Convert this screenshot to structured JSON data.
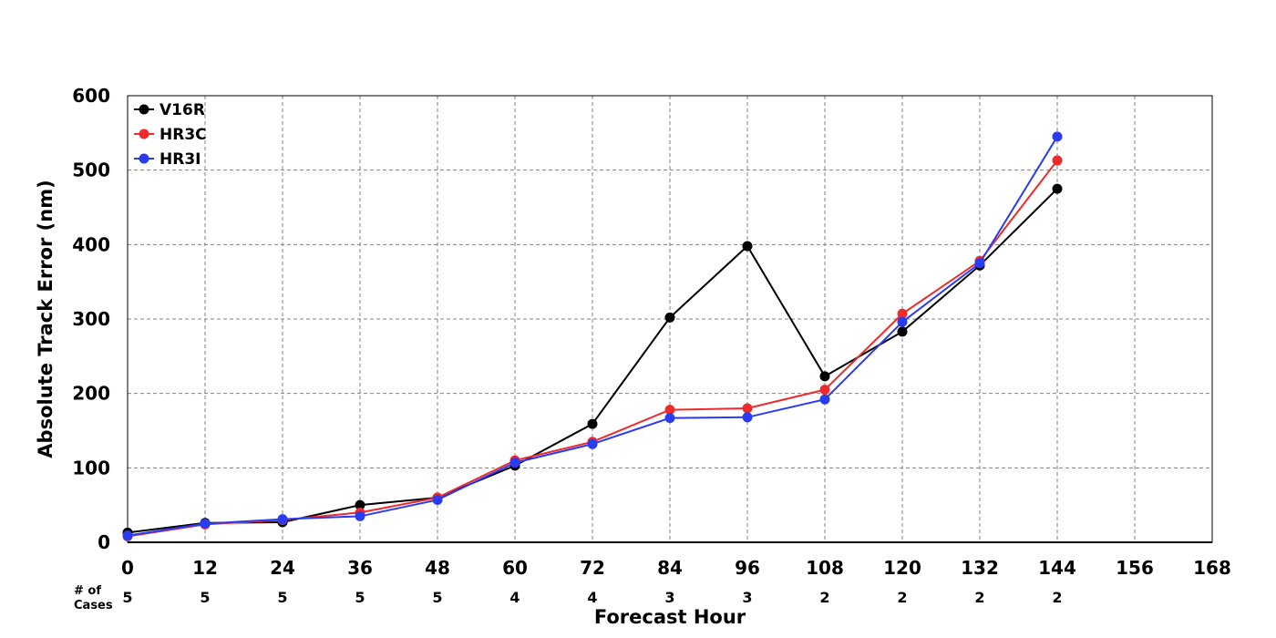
{
  "chart_data": {
    "type": "line",
    "xlabel": "Forecast Hour",
    "ylabel": "Absolute Track Error (nm)",
    "xlim": [
      0,
      168
    ],
    "ylim": [
      0,
      600
    ],
    "x_ticks": [
      0,
      12,
      24,
      36,
      48,
      60,
      72,
      84,
      96,
      108,
      120,
      132,
      144,
      156,
      168
    ],
    "y_ticks": [
      0,
      100,
      200,
      300,
      400,
      500,
      600
    ],
    "grid": true,
    "legend_position": "top-left",
    "cases_label": [
      "# of",
      "Cases"
    ],
    "cases": [
      {
        "x": 0,
        "n": "5"
      },
      {
        "x": 12,
        "n": "5"
      },
      {
        "x": 24,
        "n": "5"
      },
      {
        "x": 36,
        "n": "5"
      },
      {
        "x": 48,
        "n": "5"
      },
      {
        "x": 60,
        "n": "4"
      },
      {
        "x": 72,
        "n": "4"
      },
      {
        "x": 84,
        "n": "3"
      },
      {
        "x": 96,
        "n": "3"
      },
      {
        "x": 108,
        "n": "2"
      },
      {
        "x": 120,
        "n": "2"
      },
      {
        "x": 132,
        "n": "2"
      },
      {
        "x": 144,
        "n": "2"
      }
    ],
    "series": [
      {
        "name": "V16R",
        "color": "#000000",
        "x": [
          0,
          12,
          24,
          36,
          48,
          60,
          72,
          84,
          96,
          108,
          120,
          132,
          144
        ],
        "values": [
          13,
          26,
          27,
          50,
          60,
          103,
          159,
          302,
          398,
          223,
          283,
          372,
          475
        ]
      },
      {
        "name": "HR3C",
        "color": "#ee2a2a",
        "x": [
          0,
          12,
          24,
          36,
          48,
          60,
          72,
          84,
          96,
          108,
          120,
          132,
          144
        ],
        "values": [
          8,
          24,
          30,
          40,
          60,
          110,
          135,
          178,
          180,
          205,
          307,
          378,
          513
        ]
      },
      {
        "name": "HR3I",
        "color": "#2a3cf2",
        "x": [
          0,
          12,
          24,
          36,
          48,
          60,
          72,
          84,
          96,
          108,
          120,
          132,
          144
        ],
        "values": [
          9,
          25,
          31,
          35,
          57,
          107,
          132,
          167,
          168,
          192,
          296,
          375,
          545
        ]
      }
    ]
  }
}
